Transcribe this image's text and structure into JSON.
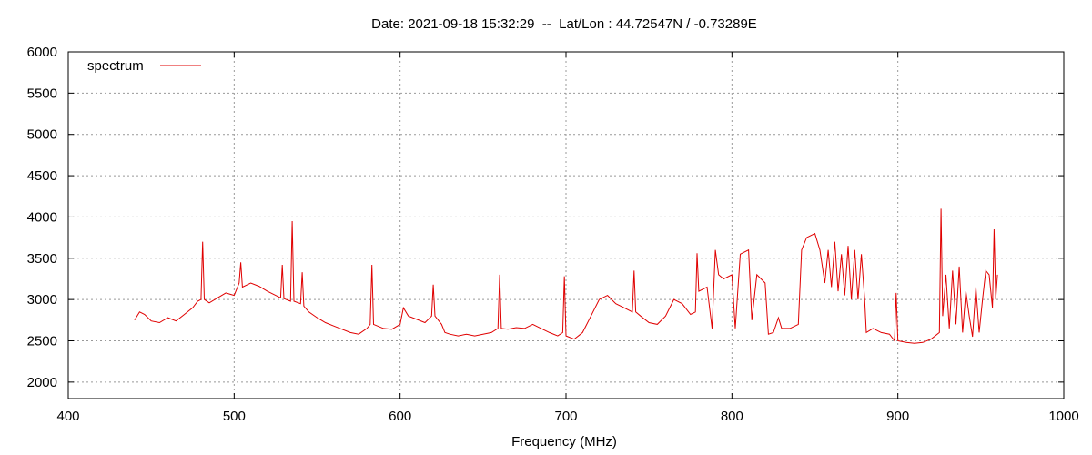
{
  "chart_data": {
    "type": "line",
    "title": "Date: 2021-09-18 15:32:29  --  Lat/Lon : 44.72547N / -0.73289E",
    "xlabel": "Frequency (MHz)",
    "ylabel": "",
    "xlim": [
      400,
      1000
    ],
    "ylim": [
      1800,
      6000
    ],
    "xticks": [
      400,
      500,
      600,
      700,
      800,
      900,
      1000
    ],
    "yticks": [
      2000,
      2500,
      3000,
      3500,
      4000,
      4500,
      5000,
      5500,
      6000
    ],
    "grid": true,
    "legend_position": "top-left",
    "series": [
      {
        "name": "spectrum",
        "color": "#e00000",
        "points": [
          [
            440,
            2750
          ],
          [
            443,
            2850
          ],
          [
            446,
            2820
          ],
          [
            450,
            2740
          ],
          [
            455,
            2720
          ],
          [
            460,
            2780
          ],
          [
            465,
            2740
          ],
          [
            470,
            2820
          ],
          [
            475,
            2900
          ],
          [
            478,
            2980
          ],
          [
            480,
            3000
          ],
          [
            481,
            3700
          ],
          [
            482,
            3000
          ],
          [
            485,
            2960
          ],
          [
            490,
            3020
          ],
          [
            495,
            3080
          ],
          [
            500,
            3050
          ],
          [
            503,
            3200
          ],
          [
            504,
            3450
          ],
          [
            505,
            3150
          ],
          [
            510,
            3200
          ],
          [
            515,
            3160
          ],
          [
            520,
            3100
          ],
          [
            525,
            3050
          ],
          [
            528,
            3020
          ],
          [
            529,
            3420
          ],
          [
            530,
            3010
          ],
          [
            534,
            2980
          ],
          [
            535,
            3950
          ],
          [
            536,
            2980
          ],
          [
            540,
            2950
          ],
          [
            541,
            3330
          ],
          [
            542,
            2920
          ],
          [
            545,
            2850
          ],
          [
            550,
            2780
          ],
          [
            555,
            2720
          ],
          [
            560,
            2680
          ],
          [
            565,
            2640
          ],
          [
            570,
            2600
          ],
          [
            575,
            2580
          ],
          [
            580,
            2650
          ],
          [
            582,
            2700
          ],
          [
            583,
            3420
          ],
          [
            584,
            2700
          ],
          [
            590,
            2650
          ],
          [
            595,
            2640
          ],
          [
            600,
            2700
          ],
          [
            602,
            2900
          ],
          [
            605,
            2800
          ],
          [
            610,
            2760
          ],
          [
            615,
            2720
          ],
          [
            619,
            2800
          ],
          [
            620,
            3180
          ],
          [
            621,
            2800
          ],
          [
            625,
            2700
          ],
          [
            627,
            2600
          ],
          [
            630,
            2580
          ],
          [
            635,
            2560
          ],
          [
            640,
            2580
          ],
          [
            645,
            2560
          ],
          [
            650,
            2580
          ],
          [
            655,
            2600
          ],
          [
            659,
            2650
          ],
          [
            660,
            3300
          ],
          [
            661,
            2650
          ],
          [
            665,
            2640
          ],
          [
            670,
            2660
          ],
          [
            675,
            2650
          ],
          [
            680,
            2700
          ],
          [
            685,
            2650
          ],
          [
            690,
            2600
          ],
          [
            695,
            2560
          ],
          [
            698,
            2600
          ],
          [
            699,
            3280
          ],
          [
            700,
            2560
          ],
          [
            705,
            2520
          ],
          [
            710,
            2600
          ],
          [
            715,
            2800
          ],
          [
            720,
            3000
          ],
          [
            725,
            3050
          ],
          [
            730,
            2950
          ],
          [
            735,
            2900
          ],
          [
            740,
            2850
          ],
          [
            741,
            3350
          ],
          [
            742,
            2850
          ],
          [
            745,
            2800
          ],
          [
            750,
            2720
          ],
          [
            755,
            2700
          ],
          [
            760,
            2800
          ],
          [
            765,
            3000
          ],
          [
            770,
            2950
          ],
          [
            775,
            2820
          ],
          [
            778,
            2850
          ],
          [
            779,
            3560
          ],
          [
            780,
            3100
          ],
          [
            785,
            3150
          ],
          [
            788,
            2650
          ],
          [
            790,
            3600
          ],
          [
            792,
            3300
          ],
          [
            795,
            3250
          ],
          [
            800,
            3300
          ],
          [
            802,
            2650
          ],
          [
            805,
            3550
          ],
          [
            810,
            3600
          ],
          [
            812,
            2750
          ],
          [
            815,
            3300
          ],
          [
            820,
            3200
          ],
          [
            822,
            2580
          ],
          [
            825,
            2600
          ],
          [
            828,
            2780
          ],
          [
            830,
            2650
          ],
          [
            835,
            2650
          ],
          [
            840,
            2700
          ],
          [
            842,
            3600
          ],
          [
            845,
            3750
          ],
          [
            850,
            3800
          ],
          [
            853,
            3600
          ],
          [
            856,
            3200
          ],
          [
            858,
            3600
          ],
          [
            860,
            3150
          ],
          [
            862,
            3700
          ],
          [
            864,
            3100
          ],
          [
            866,
            3550
          ],
          [
            868,
            3050
          ],
          [
            870,
            3650
          ],
          [
            872,
            3000
          ],
          [
            874,
            3600
          ],
          [
            876,
            3000
          ],
          [
            878,
            3550
          ],
          [
            880,
            3000
          ],
          [
            881,
            2600
          ],
          [
            885,
            2650
          ],
          [
            890,
            2600
          ],
          [
            895,
            2580
          ],
          [
            898,
            2500
          ],
          [
            899,
            3080
          ],
          [
            900,
            2500
          ],
          [
            905,
            2480
          ],
          [
            910,
            2470
          ],
          [
            915,
            2480
          ],
          [
            920,
            2520
          ],
          [
            925,
            2600
          ],
          [
            926,
            4100
          ],
          [
            927,
            2800
          ],
          [
            929,
            3300
          ],
          [
            931,
            2650
          ],
          [
            933,
            3350
          ],
          [
            935,
            2700
          ],
          [
            937,
            3400
          ],
          [
            939,
            2600
          ],
          [
            941,
            3100
          ],
          [
            943,
            2800
          ],
          [
            945,
            2550
          ],
          [
            947,
            3150
          ],
          [
            949,
            2600
          ],
          [
            951,
            3000
          ],
          [
            953,
            3350
          ],
          [
            955,
            3300
          ],
          [
            957,
            2900
          ],
          [
            958,
            3850
          ],
          [
            959,
            3000
          ],
          [
            960,
            3300
          ]
        ]
      }
    ]
  }
}
